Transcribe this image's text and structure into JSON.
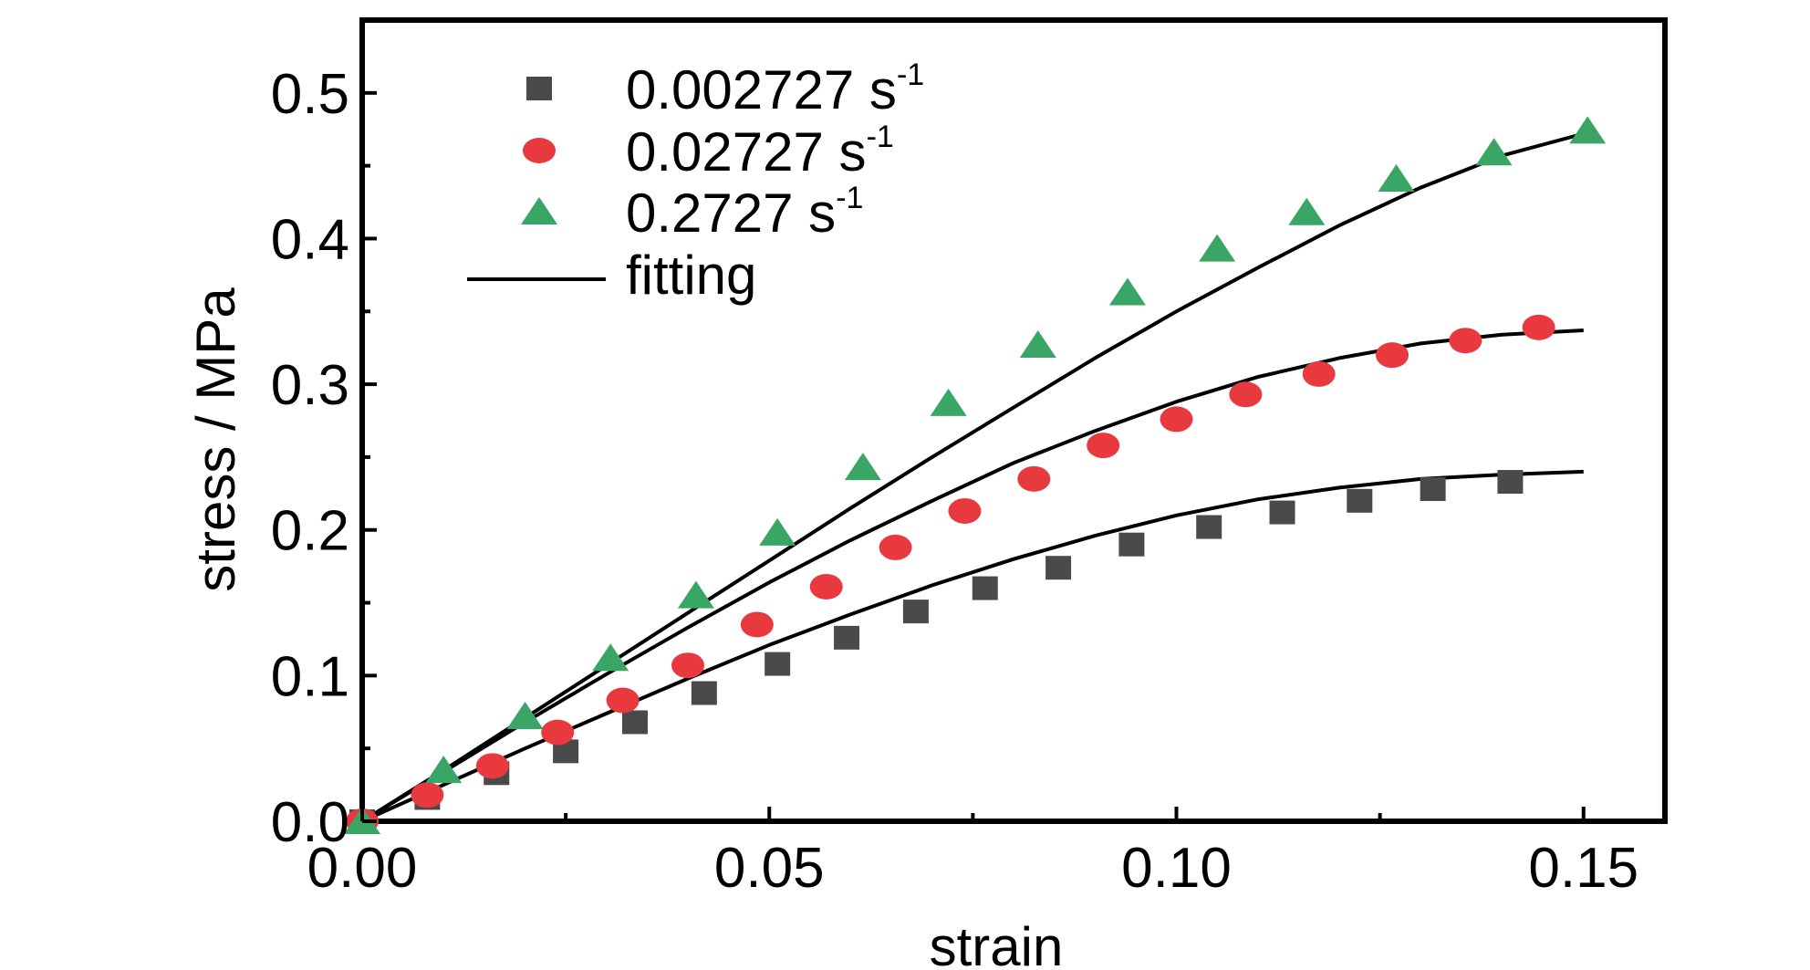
{
  "chart_data": {
    "type": "scatter",
    "xlabel": "strain",
    "ylabel": "stress / MPa",
    "xlim": [
      0,
      0.16
    ],
    "ylim": [
      0,
      0.55
    ],
    "xticks": [
      "0.00",
      "0.05",
      "0.10",
      "0.15"
    ],
    "xtick_values": [
      0,
      0.05,
      0.1,
      0.15
    ],
    "yticks": [
      "0.0",
      "0.1",
      "0.2",
      "0.3",
      "0.4",
      "0.5"
    ],
    "ytick_values": [
      0,
      0.1,
      0.2,
      0.3,
      0.4,
      0.5
    ],
    "grid": false,
    "legend_position": "top-left",
    "series": [
      {
        "name": "0.002727 s",
        "name_superscript": "-1",
        "marker": "square",
        "color": "#4a4a4a",
        "x": [
          0.0,
          0.008,
          0.0165,
          0.025,
          0.0335,
          0.042,
          0.051,
          0.0595,
          0.068,
          0.0765,
          0.0855,
          0.0945,
          0.104,
          0.113,
          0.1225,
          0.1315,
          0.141
        ],
        "y": [
          0.0,
          0.016,
          0.033,
          0.048,
          0.068,
          0.088,
          0.108,
          0.126,
          0.144,
          0.16,
          0.174,
          0.19,
          0.202,
          0.212,
          0.22,
          0.228,
          0.233
        ]
      },
      {
        "name": "0.02727 s",
        "name_superscript": "-1",
        "marker": "ellipse",
        "color": "#e8393f",
        "x": [
          0.0,
          0.008,
          0.016,
          0.024,
          0.032,
          0.04,
          0.0485,
          0.057,
          0.0655,
          0.074,
          0.0825,
          0.091,
          0.1,
          0.1085,
          0.1175,
          0.1265,
          0.1355,
          0.1445
        ],
        "y": [
          0.0,
          0.018,
          0.038,
          0.061,
          0.083,
          0.107,
          0.135,
          0.161,
          0.188,
          0.213,
          0.235,
          0.258,
          0.276,
          0.293,
          0.307,
          0.32,
          0.33,
          0.339
        ]
      },
      {
        "name": "0.2727 s",
        "name_superscript": "-1",
        "marker": "triangle",
        "color": "#3aa665",
        "x": [
          0.0,
          0.01,
          0.02,
          0.0305,
          0.041,
          0.051,
          0.0615,
          0.072,
          0.083,
          0.094,
          0.105,
          0.116,
          0.127,
          0.139,
          0.1505
        ],
        "y": [
          0.0,
          0.035,
          0.072,
          0.112,
          0.155,
          0.198,
          0.243,
          0.287,
          0.327,
          0.363,
          0.393,
          0.418,
          0.441,
          0.459,
          0.474
        ]
      },
      {
        "name": "fitting",
        "marker": "line",
        "color": "#000000",
        "curves": [
          {
            "x": [
              0,
              0.01,
              0.02,
              0.03,
              0.04,
              0.05,
              0.06,
              0.07,
              0.08,
              0.09,
              0.1,
              0.11,
              0.12,
              0.13,
              0.14,
              0.15
            ],
            "y": [
              0,
              0.025,
              0.05,
              0.074,
              0.098,
              0.121,
              0.142,
              0.162,
              0.18,
              0.196,
              0.21,
              0.221,
              0.229,
              0.235,
              0.238,
              0.24
            ]
          },
          {
            "x": [
              0,
              0.01,
              0.02,
              0.03,
              0.04,
              0.05,
              0.06,
              0.07,
              0.08,
              0.09,
              0.1,
              0.11,
              0.12,
              0.13,
              0.14,
              0.15
            ],
            "y": [
              0,
              0.034,
              0.068,
              0.101,
              0.133,
              0.164,
              0.193,
              0.22,
              0.246,
              0.268,
              0.288,
              0.305,
              0.318,
              0.328,
              0.334,
              0.337
            ]
          },
          {
            "x": [
              0,
              0.01,
              0.02,
              0.03,
              0.04,
              0.05,
              0.06,
              0.07,
              0.08,
              0.09,
              0.1,
              0.11,
              0.12,
              0.13,
              0.14,
              0.15
            ],
            "y": [
              0,
              0.035,
              0.071,
              0.107,
              0.143,
              0.179,
              0.215,
              0.25,
              0.284,
              0.318,
              0.35,
              0.38,
              0.409,
              0.435,
              0.457,
              0.472
            ]
          }
        ]
      }
    ]
  }
}
